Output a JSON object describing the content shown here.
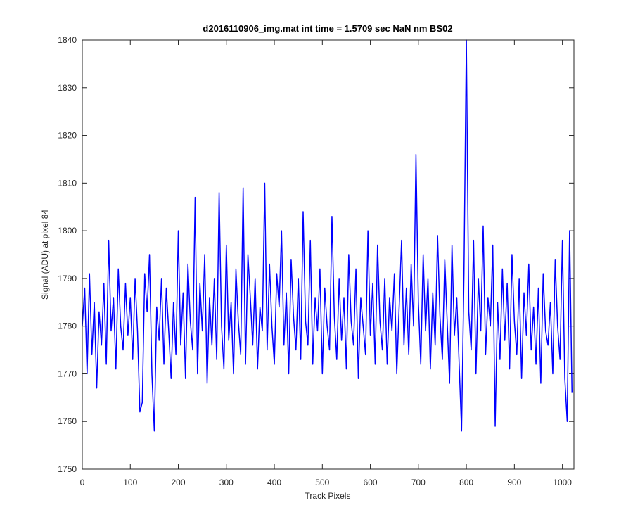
{
  "chart_data": {
    "type": "line",
    "title": "d2016110906_img.mat int time = 1.5709 sec  NaN nm BS02",
    "x_label": "Track Pixels",
    "y_label": "Signal (ADU) at pixel 84",
    "xlim": [
      0,
      1024
    ],
    "xticks": [
      0,
      100,
      200,
      300,
      400,
      500,
      600,
      700,
      800,
      900,
      1000
    ],
    "ylim": [
      1750,
      1840
    ],
    "yticks": [
      1750,
      1760,
      1770,
      1780,
      1790,
      1800,
      1810,
      1820,
      1830,
      1840
    ],
    "series": [
      {
        "color": "#0000ff",
        "x": [
          0,
          5,
          10,
          15,
          20,
          25,
          30,
          35,
          40,
          45,
          50,
          55,
          60,
          65,
          70,
          75,
          80,
          85,
          90,
          95,
          100,
          105,
          110,
          115,
          120,
          125,
          130,
          135,
          140,
          145,
          150,
          155,
          160,
          165,
          170,
          175,
          180,
          185,
          190,
          195,
          200,
          205,
          210,
          215,
          220,
          225,
          230,
          235,
          240,
          245,
          250,
          255,
          260,
          265,
          270,
          275,
          280,
          285,
          290,
          295,
          300,
          305,
          310,
          315,
          320,
          325,
          330,
          335,
          340,
          345,
          350,
          355,
          360,
          365,
          370,
          375,
          380,
          385,
          390,
          395,
          400,
          405,
          410,
          415,
          420,
          425,
          430,
          435,
          440,
          445,
          450,
          455,
          460,
          465,
          470,
          475,
          480,
          485,
          490,
          495,
          500,
          505,
          510,
          515,
          520,
          525,
          530,
          535,
          540,
          545,
          550,
          555,
          560,
          565,
          570,
          575,
          580,
          585,
          590,
          595,
          600,
          605,
          610,
          615,
          620,
          625,
          630,
          635,
          640,
          645,
          650,
          655,
          660,
          665,
          670,
          675,
          680,
          685,
          690,
          695,
          700,
          705,
          710,
          715,
          720,
          725,
          730,
          735,
          740,
          745,
          750,
          755,
          760,
          765,
          770,
          775,
          780,
          785,
          790,
          795,
          800,
          805,
          810,
          815,
          820,
          825,
          830,
          835,
          840,
          845,
          850,
          855,
          860,
          865,
          870,
          875,
          880,
          885,
          890,
          895,
          900,
          905,
          910,
          915,
          920,
          925,
          930,
          935,
          940,
          945,
          950,
          955,
          960,
          965,
          970,
          975,
          980,
          985,
          990,
          995,
          1000,
          1005,
          1010,
          1015,
          1020
        ],
        "values": [
          1780,
          1788,
          1770,
          1791,
          1774,
          1785,
          1767,
          1783,
          1776,
          1789,
          1772,
          1798,
          1779,
          1786,
          1771,
          1792,
          1780,
          1775,
          1789,
          1778,
          1786,
          1773,
          1790,
          1779,
          1762,
          1764,
          1791,
          1783,
          1795,
          1770,
          1758,
          1784,
          1777,
          1790,
          1772,
          1788,
          1779,
          1769,
          1785,
          1774,
          1800,
          1776,
          1787,
          1769,
          1793,
          1781,
          1775,
          1807,
          1770,
          1789,
          1779,
          1795,
          1768,
          1786,
          1776,
          1790,
          1773,
          1808,
          1780,
          1771,
          1797,
          1777,
          1785,
          1770,
          1792,
          1781,
          1774,
          1809,
          1772,
          1795,
          1786,
          1776,
          1790,
          1771,
          1784,
          1779,
          1810,
          1775,
          1793,
          1780,
          1772,
          1791,
          1784,
          1800,
          1776,
          1787,
          1770,
          1794,
          1782,
          1775,
          1790,
          1773,
          1804,
          1781,
          1776,
          1798,
          1772,
          1786,
          1779,
          1792,
          1770,
          1788,
          1780,
          1775,
          1803,
          1782,
          1773,
          1790,
          1777,
          1786,
          1771,
          1795,
          1781,
          1776,
          1792,
          1769,
          1786,
          1780,
          1774,
          1800,
          1778,
          1789,
          1772,
          1797,
          1781,
          1775,
          1790,
          1772,
          1786,
          1779,
          1791,
          1770,
          1784,
          1798,
          1776,
          1788,
          1774,
          1793,
          1780,
          1816,
          1785,
          1772,
          1795,
          1779,
          1790,
          1771,
          1787,
          1776,
          1799,
          1782,
          1773,
          1794,
          1781,
          1768,
          1797,
          1778,
          1786,
          1772,
          1758,
          1791,
          1840,
          1783,
          1775,
          1798,
          1770,
          1790,
          1779,
          1801,
          1774,
          1786,
          1780,
          1797,
          1759,
          1785,
          1773,
          1792,
          1777,
          1789,
          1771,
          1795,
          1781,
          1774,
          1790,
          1769,
          1787,
          1778,
          1793,
          1775,
          1784,
          1772,
          1788,
          1768,
          1791,
          1779,
          1776,
          1785,
          1770,
          1794,
          1780,
          1773,
          1798,
          1769,
          1760,
          1800,
          1766
        ]
      }
    ]
  }
}
